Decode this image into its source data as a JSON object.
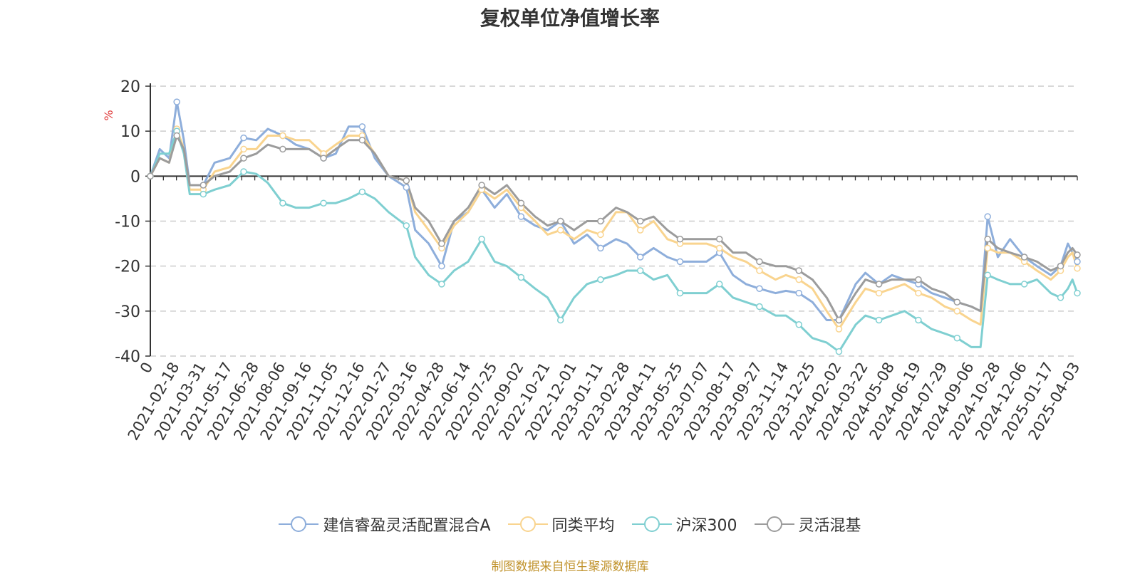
{
  "chart_data": {
    "type": "line",
    "title": "复权单位净值增长率",
    "ylabel": "%",
    "ylim": [
      -40,
      20
    ],
    "yticks": [
      20,
      10,
      0,
      -10,
      -20,
      -30,
      -40
    ],
    "xticks": [
      "0",
      "2021-02-18",
      "2021-03-31",
      "2021-05-17",
      "2021-06-28",
      "2021-08-06",
      "2021-09-16",
      "2021-11-05",
      "2021-12-16",
      "2022-01-27",
      "2022-03-16",
      "2022-04-28",
      "2022-06-14",
      "2022-07-25",
      "2022-09-02",
      "2022-10-21",
      "2022-12-01",
      "2023-01-11",
      "2023-02-28",
      "2023-04-11",
      "2023-05-25",
      "2023-07-07",
      "2023-08-17",
      "2023-09-27",
      "2023-11-14",
      "2023-12-25",
      "2024-02-02",
      "2024-03-22",
      "2024-05-08",
      "2024-06-19",
      "2024-07-29",
      "2024-09-06",
      "2024-10-28",
      "2024-12-06",
      "2025-01-17",
      "2025-04-03"
    ],
    "grid": true,
    "legend_position": "bottom",
    "x": [
      "2021-01-04",
      "2021-01-20",
      "2021-02-05",
      "2021-02-18",
      "2021-03-01",
      "2021-03-10",
      "2021-03-31",
      "2021-04-20",
      "2021-05-17",
      "2021-06-08",
      "2021-06-28",
      "2021-07-15",
      "2021-08-06",
      "2021-08-26",
      "2021-09-16",
      "2021-10-13",
      "2021-11-05",
      "2021-11-25",
      "2021-12-16",
      "2022-01-05",
      "2022-01-27",
      "2022-02-28",
      "2022-03-16",
      "2022-04-07",
      "2022-04-28",
      "2022-05-20",
      "2022-06-14",
      "2022-07-05",
      "2022-07-25",
      "2022-08-12",
      "2022-09-02",
      "2022-09-28",
      "2022-10-21",
      "2022-11-10",
      "2022-12-01",
      "2022-12-21",
      "2023-01-11",
      "2023-02-08",
      "2023-02-28",
      "2023-03-21",
      "2023-04-11",
      "2023-05-04",
      "2023-05-25",
      "2023-06-16",
      "2023-07-07",
      "2023-07-27",
      "2023-08-17",
      "2023-09-06",
      "2023-09-27",
      "2023-10-26",
      "2023-11-14",
      "2023-12-04",
      "2023-12-25",
      "2024-01-15",
      "2024-02-02",
      "2024-03-04",
      "2024-03-22",
      "2024-04-15",
      "2024-05-08",
      "2024-05-28",
      "2024-06-19",
      "2024-07-09",
      "2024-07-29",
      "2024-08-16",
      "2024-09-06",
      "2024-09-24",
      "2024-10-08",
      "2024-10-28",
      "2024-11-15",
      "2024-12-06",
      "2024-12-26",
      "2025-01-17",
      "2025-02-14",
      "2025-03-07",
      "2025-03-20",
      "2025-04-03"
    ],
    "series": [
      {
        "name": "建信睿盈灵活配置混合A",
        "color": "#8eaedb",
        "values": [
          0,
          6,
          4,
          16.5,
          8,
          -2,
          -2,
          3,
          4,
          8.5,
          8,
          10.5,
          9,
          7,
          6,
          4,
          5,
          11,
          11,
          4,
          0,
          -2.5,
          -12,
          -15,
          -20,
          -10,
          -8,
          -3,
          -7,
          -4,
          -9,
          -11,
          -12,
          -10,
          -15,
          -13,
          -16,
          -14,
          -15,
          -18,
          -16,
          -18,
          -19,
          -19,
          -19,
          -17,
          -22,
          -24,
          -25,
          -26,
          -25.5,
          -26,
          -28,
          -32,
          -32,
          -24,
          -21.5,
          -24,
          -22,
          -23,
          -24,
          -26,
          -27,
          -28,
          -29,
          -30,
          -9,
          -18,
          -14,
          -18,
          -20,
          -22,
          -20,
          -15,
          -17,
          -19
        ]
      },
      {
        "name": "同类平均",
        "color": "#f9d48f",
        "values": [
          0,
          4,
          3,
          10.5,
          6,
          -3,
          -3,
          1,
          2,
          6,
          6,
          9,
          9,
          8,
          8,
          5,
          7,
          9,
          9,
          5,
          0,
          -1,
          -8,
          -12,
          -16,
          -11,
          -8,
          -3,
          -5,
          -3,
          -7,
          -10,
          -13,
          -12,
          -14,
          -12,
          -13,
          -8,
          -8,
          -12,
          -10,
          -14,
          -15,
          -15,
          -15,
          -16,
          -18,
          -19,
          -21,
          -23,
          -22,
          -23,
          -25,
          -30,
          -34,
          -28,
          -25,
          -26,
          -25,
          -24,
          -26,
          -27,
          -29,
          -30,
          -32,
          -33,
          -16,
          -17,
          -17,
          -19,
          -21,
          -23,
          -21,
          -18,
          -17,
          -20.5
        ]
      },
      {
        "name": "沪深300",
        "color": "#7fcfd1",
        "values": [
          0,
          5,
          5,
          10,
          5,
          -4,
          -4,
          -3,
          -2,
          1,
          0.5,
          -1.5,
          -6,
          -7,
          -7,
          -6,
          -6,
          -5,
          -3.5,
          -5,
          -8,
          -11,
          -18,
          -22,
          -24,
          -21,
          -19,
          -14,
          -19,
          -20,
          -22.5,
          -25,
          -27,
          -32,
          -27,
          -24,
          -23,
          -22,
          -21,
          -21,
          -23,
          -22,
          -26,
          -26,
          -26,
          -24,
          -27,
          -28,
          -29,
          -31,
          -31,
          -33,
          -36,
          -37,
          -39,
          -33,
          -31,
          -32,
          -31,
          -30,
          -32,
          -34,
          -35,
          -36,
          -38,
          -38,
          -22,
          -23,
          -24,
          -24,
          -23,
          -26,
          -27,
          -25,
          -23,
          -26
        ]
      },
      {
        "name": "灵活混基",
        "color": "#9c9c9c",
        "values": [
          0,
          4,
          3,
          9,
          6,
          -2,
          -2,
          0,
          1,
          4,
          5,
          7,
          6,
          6,
          6,
          4,
          6,
          8,
          8,
          5,
          0,
          -1,
          -7,
          -10,
          -15,
          -10,
          -7,
          -2,
          -4,
          -2,
          -6,
          -9,
          -11,
          -10,
          -12,
          -10,
          -10,
          -7,
          -8,
          -10,
          -9,
          -12,
          -14,
          -14,
          -14,
          -14,
          -17,
          -17,
          -19,
          -20,
          -20,
          -21,
          -23,
          -27,
          -32,
          -26,
          -23,
          -24,
          -23,
          -23,
          -23,
          -25,
          -26,
          -28,
          -29,
          -30,
          -14,
          -16,
          -17,
          -18,
          -19,
          -21,
          -20,
          -17,
          -16,
          -17.5
        ]
      }
    ]
  },
  "source_note": "制图数据来自恒生聚源数据库"
}
